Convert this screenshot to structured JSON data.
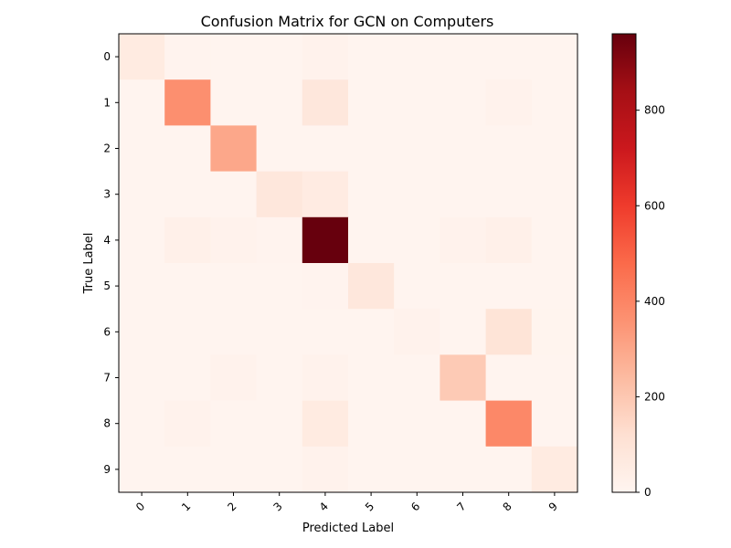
{
  "chart_data": {
    "type": "heatmap",
    "title": "Confusion Matrix for GCN on Computers",
    "xlabel": "Predicted Label",
    "ylabel": "True Label",
    "x_categories": [
      "0",
      "1",
      "2",
      "3",
      "4",
      "5",
      "6",
      "7",
      "8",
      "9"
    ],
    "y_categories": [
      "0",
      "1",
      "2",
      "3",
      "4",
      "5",
      "6",
      "7",
      "8",
      "9"
    ],
    "values": [
      [
        60,
        10,
        5,
        5,
        15,
        3,
        3,
        3,
        5,
        3
      ],
      [
        5,
        370,
        5,
        5,
        80,
        3,
        3,
        3,
        15,
        3
      ],
      [
        3,
        3,
        300,
        3,
        3,
        3,
        3,
        3,
        3,
        3
      ],
      [
        3,
        5,
        5,
        80,
        55,
        3,
        3,
        3,
        3,
        3
      ],
      [
        3,
        30,
        15,
        10,
        960,
        5,
        5,
        15,
        30,
        5
      ],
      [
        3,
        3,
        3,
        3,
        10,
        80,
        3,
        3,
        3,
        3
      ],
      [
        3,
        3,
        3,
        3,
        5,
        5,
        15,
        5,
        100,
        8
      ],
      [
        3,
        5,
        15,
        5,
        15,
        3,
        3,
        190,
        3,
        5
      ],
      [
        3,
        15,
        5,
        5,
        60,
        3,
        3,
        3,
        390,
        3
      ],
      [
        3,
        5,
        3,
        3,
        15,
        3,
        3,
        5,
        5,
        60
      ]
    ],
    "colormap": "Reds",
    "colorbar": {
      "min": 0,
      "max": 960,
      "ticks": [
        0,
        200,
        400,
        600,
        800
      ]
    },
    "grid": false
  }
}
